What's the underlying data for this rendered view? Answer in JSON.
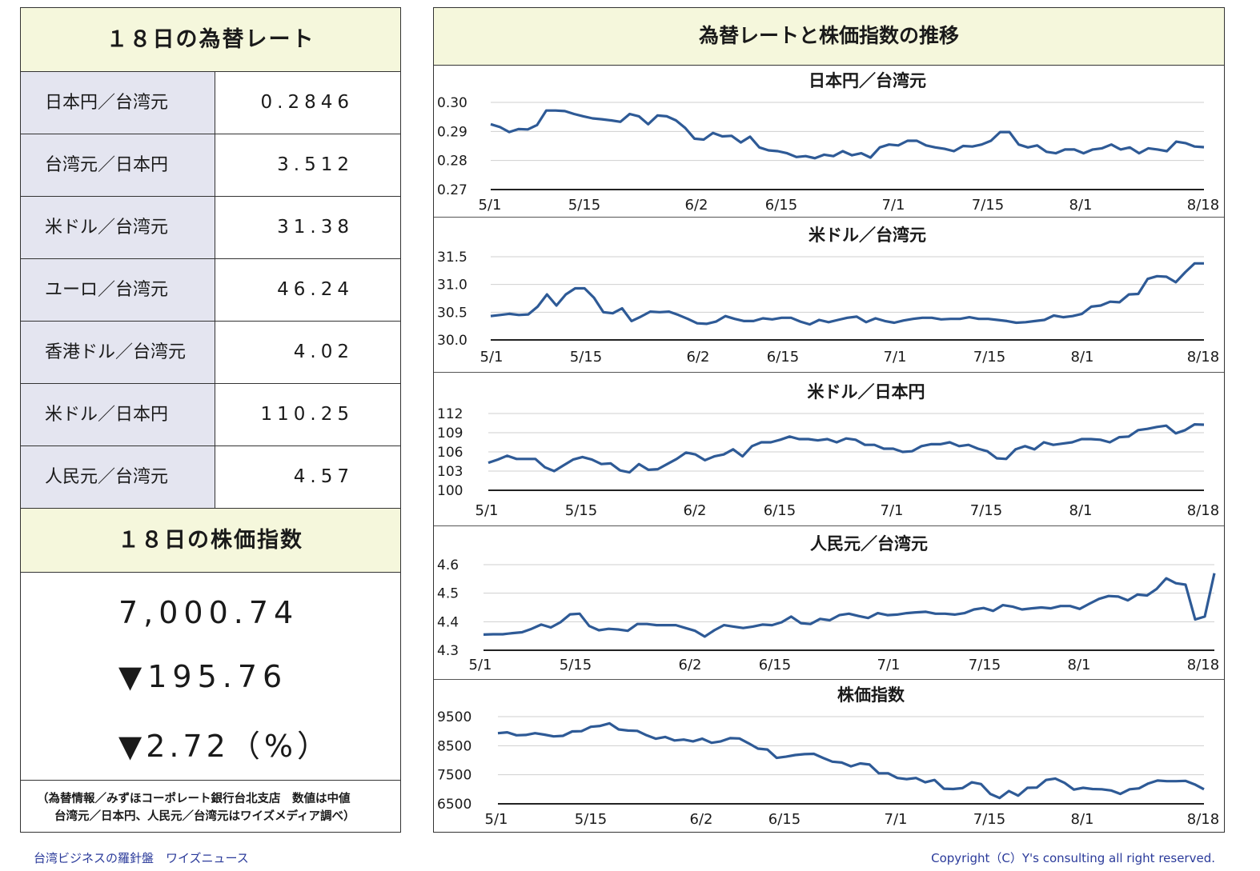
{
  "left": {
    "rates_title": "１８日の為替レート",
    "rates": [
      {
        "label": "日本円／台湾元",
        "value": "0.2846"
      },
      {
        "label": "台湾元／日本円",
        "value": "3.512"
      },
      {
        "label": "米ドル／台湾元",
        "value": "31.38"
      },
      {
        "label": "ユーロ／台湾元",
        "value": "46.24"
      },
      {
        "label": "香港ドル／台湾元",
        "value": "4.02"
      },
      {
        "label": "米ドル／日本円",
        "value": "110.25"
      },
      {
        "label": "人民元／台湾元",
        "value": "4.57"
      }
    ],
    "stock_title": "１８日の株価指数",
    "stock_value": "7,000.74",
    "stock_change": "▼195.76",
    "stock_pct": "▼2.72（%）",
    "note_line1": "（為替情報／みずほコーポレート銀行台北支店　数値は中値",
    "note_line2": "台湾元／日本円、人民元／台湾元はワイズメディア調べ）"
  },
  "right": {
    "title": "為替レートと株価指数の推移"
  },
  "footer": {
    "left": "台湾ビジネスの羅針盤　ワイズニュース",
    "right": "Copyright（C）Y's consulting all right reserved."
  },
  "colors": {
    "line": "#2e5a96",
    "header_bg": "#f5f7dc",
    "label_bg": "#e4e5f0"
  },
  "chart_data": [
    {
      "type": "line",
      "title": "日本円／台湾元",
      "x_ticks": [
        "5/1",
        "5/15",
        "6/2",
        "6/15",
        "7/1",
        "7/15",
        "8/1",
        "8/18"
      ],
      "y_ticks": [
        "0.30",
        "0.29",
        "0.28",
        "0.27"
      ],
      "ylim": [
        0.27,
        0.3
      ],
      "values": [
        0.2925,
        0.2915,
        0.2898,
        0.2908,
        0.2907,
        0.2922,
        0.2972,
        0.2972,
        0.297,
        0.296,
        0.2952,
        0.2945,
        0.2942,
        0.2938,
        0.2933,
        0.296,
        0.2952,
        0.2925,
        0.2955,
        0.2952,
        0.2938,
        0.2912,
        0.2875,
        0.2872,
        0.2895,
        0.2883,
        0.2885,
        0.2862,
        0.2882,
        0.2845,
        0.2835,
        0.2832,
        0.2825,
        0.2812,
        0.2815,
        0.2808,
        0.282,
        0.2815,
        0.2832,
        0.2818,
        0.2825,
        0.281,
        0.2845,
        0.2855,
        0.2852,
        0.2868,
        0.2868,
        0.2852,
        0.2845,
        0.284,
        0.2832,
        0.285,
        0.2848,
        0.2855,
        0.2868,
        0.2898,
        0.2898,
        0.2855,
        0.2845,
        0.2852,
        0.283,
        0.2825,
        0.2838,
        0.2838,
        0.2825,
        0.2838,
        0.2842,
        0.2855,
        0.2838,
        0.2845,
        0.2825,
        0.2842,
        0.2838,
        0.2832,
        0.2865,
        0.286,
        0.2848,
        0.2846
      ]
    },
    {
      "type": "line",
      "title": "米ドル／台湾元",
      "x_ticks": [
        "5/1",
        "5/15",
        "6/2",
        "6/15",
        "7/1",
        "7/15",
        "8/1",
        "8/18"
      ],
      "y_ticks": [
        "31.5",
        "31.0",
        "30.5",
        "30.0"
      ],
      "ylim": [
        30.0,
        31.5
      ],
      "values": [
        30.43,
        30.45,
        30.47,
        30.45,
        30.46,
        30.6,
        30.82,
        30.62,
        30.82,
        30.93,
        30.93,
        30.76,
        30.5,
        30.48,
        30.57,
        30.34,
        30.42,
        30.51,
        30.5,
        30.51,
        30.45,
        30.38,
        30.3,
        30.29,
        30.33,
        30.43,
        30.38,
        30.34,
        30.34,
        30.39,
        30.37,
        30.4,
        30.4,
        30.33,
        30.28,
        30.36,
        30.32,
        30.36,
        30.4,
        30.42,
        30.32,
        30.39,
        30.34,
        30.31,
        30.35,
        30.38,
        30.4,
        30.4,
        30.37,
        30.38,
        30.38,
        30.41,
        30.38,
        30.38,
        30.36,
        30.34,
        30.31,
        30.32,
        30.34,
        30.36,
        30.44,
        30.41,
        30.43,
        30.47,
        30.6,
        30.62,
        30.69,
        30.68,
        30.82,
        30.83,
        31.1,
        31.15,
        31.14,
        31.04,
        31.22,
        31.38,
        31.38
      ]
    },
    {
      "type": "line",
      "title": "米ドル／日本円",
      "x_ticks": [
        "5/1",
        "5/15",
        "6/2",
        "6/15",
        "7/1",
        "7/15",
        "8/1",
        "8/18"
      ],
      "y_ticks": [
        "112",
        "109",
        "106",
        "103",
        "100"
      ],
      "ylim": [
        100,
        112
      ],
      "values": [
        104.3,
        104.8,
        105.4,
        104.9,
        104.9,
        104.9,
        103.6,
        103.0,
        103.9,
        104.8,
        105.2,
        104.8,
        104.1,
        104.2,
        103.1,
        102.8,
        104.1,
        103.2,
        103.3,
        104.1,
        104.9,
        105.9,
        105.6,
        104.7,
        105.3,
        105.6,
        106.4,
        105.3,
        106.9,
        107.5,
        107.5,
        107.9,
        108.4,
        108.0,
        108.0,
        107.8,
        108.0,
        107.5,
        108.1,
        107.9,
        107.1,
        107.1,
        106.5,
        106.5,
        106.0,
        106.1,
        106.9,
        107.2,
        107.2,
        107.5,
        106.9,
        107.1,
        106.5,
        106.1,
        105.0,
        104.9,
        106.4,
        106.9,
        106.4,
        107.5,
        107.1,
        107.3,
        107.5,
        108.0,
        108.0,
        107.9,
        107.5,
        108.3,
        108.4,
        109.4,
        109.6,
        109.9,
        110.1,
        108.9,
        109.4,
        110.3,
        110.25
      ]
    },
    {
      "type": "line",
      "title": "人民元／台湾元",
      "x_ticks": [
        "5/1",
        "5/15",
        "6/2",
        "6/15",
        "7/1",
        "7/15",
        "8/1",
        "8/18"
      ],
      "y_ticks": [
        "4.6",
        "4.5",
        "4.4",
        "4.3"
      ],
      "ylim": [
        4.3,
        4.6
      ],
      "values": [
        4.355,
        4.356,
        4.356,
        4.36,
        4.363,
        4.375,
        4.39,
        4.38,
        4.398,
        4.426,
        4.428,
        4.385,
        4.37,
        4.375,
        4.373,
        4.368,
        4.392,
        4.392,
        4.388,
        4.388,
        4.388,
        4.378,
        4.368,
        4.348,
        4.37,
        4.388,
        4.383,
        4.378,
        4.383,
        4.39,
        4.388,
        4.398,
        4.418,
        4.395,
        4.392,
        4.41,
        4.405,
        4.423,
        4.428,
        4.42,
        4.413,
        4.43,
        4.423,
        4.425,
        4.43,
        4.433,
        4.435,
        4.428,
        4.428,
        4.425,
        4.43,
        4.443,
        4.448,
        4.438,
        4.458,
        4.453,
        4.443,
        4.447,
        4.45,
        4.447,
        4.455,
        4.455,
        4.445,
        4.463,
        4.48,
        4.49,
        4.488,
        4.475,
        4.495,
        4.492,
        4.515,
        4.552,
        4.535,
        4.53,
        4.408,
        4.418,
        4.57
      ]
    },
    {
      "type": "line",
      "title": "株価指数",
      "x_ticks": [
        "5/1",
        "5/15",
        "6/2",
        "6/15",
        "7/1",
        "7/15",
        "8/1",
        "8/18"
      ],
      "y_ticks": [
        "9500",
        "8500",
        "7500",
        "6500"
      ],
      "ylim": [
        6500,
        9500
      ],
      "values": [
        8930,
        8960,
        8860,
        8870,
        8930,
        8880,
        8820,
        8840,
        8990,
        9000,
        9150,
        9180,
        9270,
        9060,
        9020,
        9010,
        8860,
        8740,
        8800,
        8680,
        8710,
        8650,
        8740,
        8600,
        8650,
        8760,
        8750,
        8580,
        8400,
        8370,
        8080,
        8120,
        8180,
        8210,
        8220,
        8080,
        7950,
        7920,
        7790,
        7890,
        7850,
        7550,
        7550,
        7390,
        7350,
        7390,
        7240,
        7320,
        7020,
        7010,
        7040,
        7240,
        7180,
        6840,
        6700,
        6940,
        6780,
        7050,
        7060,
        7320,
        7370,
        7220,
        6990,
        7050,
        7010,
        7000,
        6960,
        6840,
        7000,
        7030,
        7200,
        7300,
        7280,
        7280,
        7290,
        7170,
        7000
      ]
    }
  ]
}
